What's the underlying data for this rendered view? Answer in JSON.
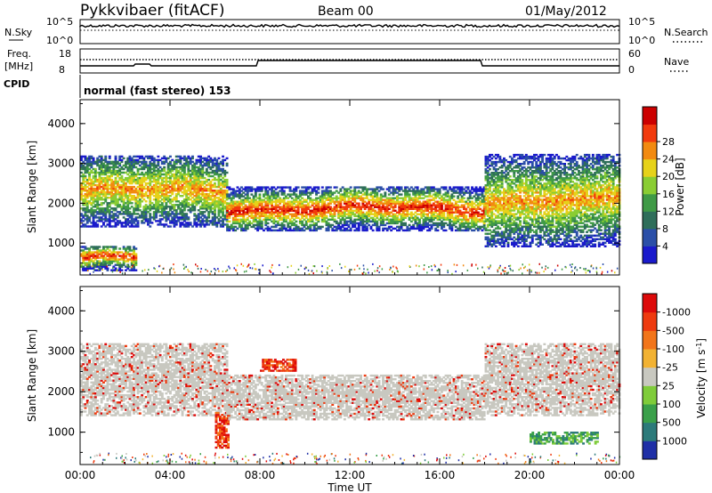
{
  "header": {
    "station": "Pykkvibaer (fitACF)",
    "beam": "Beam 00",
    "date": "01/May/2012"
  },
  "noise_panel": {
    "left_label": "N.Sky",
    "left_ticks": [
      "10^5",
      "10^0"
    ],
    "right_ticks": [
      "10^5",
      "10^0"
    ],
    "right_label": "N.Search"
  },
  "freq_panel": {
    "left_label_1": "Freq.",
    "left_label_2": "[MHz]",
    "left_ticks": [
      "18",
      "8"
    ],
    "right_ticks": [
      "60",
      "0"
    ],
    "right_label": "Nave"
  },
  "cpid_panel": {
    "label": "CPID",
    "text": "normal (fast stereo) 153"
  },
  "chart_data": [
    {
      "type": "heatmap",
      "name": "power",
      "ylabel": "Slant Range [km]",
      "ylim": [
        200,
        4600
      ],
      "yticks": [
        "1000",
        "2000",
        "3000",
        "4000"
      ],
      "xlim": [
        0,
        24
      ],
      "xticks": [
        "00:00",
        "04:00",
        "08:00",
        "12:00",
        "16:00",
        "20:00",
        "00:00"
      ],
      "colorbar_label": "Power [dB]",
      "colorbar_ticks": [
        "4",
        "8",
        "12",
        "16",
        "20",
        "24",
        "28"
      ],
      "colors": [
        "#1a1acc",
        "#2b4fa8",
        "#2f6e5a",
        "#3f9a46",
        "#8acd33",
        "#e6d21a",
        "#f28a10",
        "#f23a0d",
        "#cc0000"
      ],
      "echo_bands": [
        {
          "t": [
            0,
            6.5
          ],
          "range": [
            1400,
            3200
          ],
          "level": "medium"
        },
        {
          "t": [
            0,
            2.5
          ],
          "range": [
            300,
            900
          ],
          "level": "high"
        },
        {
          "t": [
            6.5,
            18
          ],
          "range": [
            1300,
            2400
          ],
          "level": "high"
        },
        {
          "t": [
            18,
            24
          ],
          "range": [
            900,
            3200
          ],
          "level": "medium"
        }
      ]
    },
    {
      "type": "heatmap",
      "name": "velocity",
      "ylabel": "Slant Range [km]",
      "ylim": [
        200,
        4600
      ],
      "yticks": [
        "1000",
        "2000",
        "3000",
        "4000"
      ],
      "xlim": [
        0,
        24
      ],
      "xticks": [
        "00:00",
        "04:00",
        "08:00",
        "12:00",
        "16:00",
        "20:00",
        "00:00"
      ],
      "xlabel": "Time UT",
      "colorbar_label": "Velocity [m s^-1]",
      "colorbar_ticks": [
        "1000",
        "500",
        "100",
        "25",
        "-25",
        "-100",
        "-500",
        "-1000"
      ],
      "colors": [
        "#1f2fa6",
        "#2c7a7a",
        "#3aa04a",
        "#7fcc3a",
        "#c8c8c0",
        "#f2b233",
        "#f2751a",
        "#ee3a0f",
        "#dd0a0a"
      ],
      "echo_bands": [
        {
          "t": [
            0,
            6.5
          ],
          "range": [
            1400,
            3200
          ],
          "level": "near-zero"
        },
        {
          "t": [
            6,
            6.6
          ],
          "range": [
            600,
            1500
          ],
          "level": "negative"
        },
        {
          "t": [
            8,
            9.6
          ],
          "range": [
            2500,
            2800
          ],
          "level": "negative"
        },
        {
          "t": [
            6.5,
            18
          ],
          "range": [
            1300,
            2400
          ],
          "level": "near-zero"
        },
        {
          "t": [
            18,
            24
          ],
          "range": [
            1400,
            3200
          ],
          "level": "near-zero"
        },
        {
          "t": [
            20,
            23
          ],
          "range": [
            700,
            1000
          ],
          "level": "positive"
        }
      ]
    }
  ]
}
